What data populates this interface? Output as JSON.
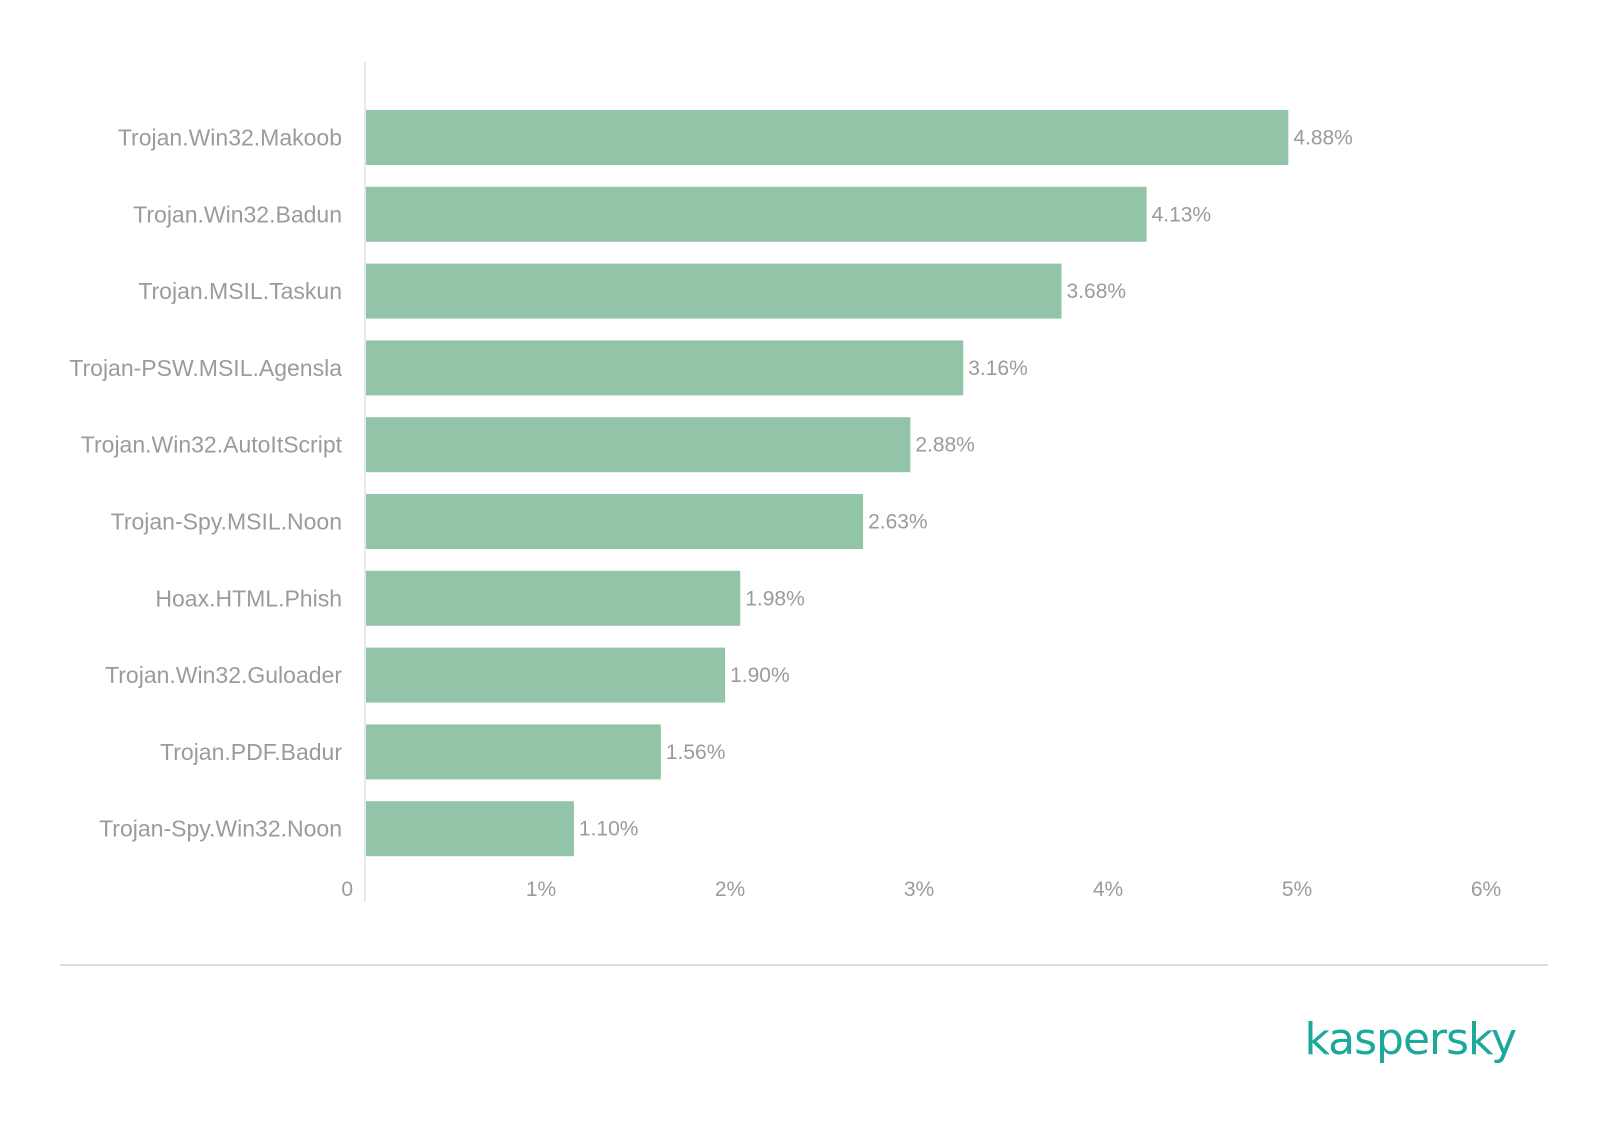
{
  "chart_data": {
    "type": "bar",
    "orientation": "horizontal",
    "categories": [
      "Trojan.Win32.Makoob",
      "Trojan.Win32.Badun",
      "Trojan.MSIL.Taskun",
      "Trojan-PSW.MSIL.Agensla",
      "Trojan.Win32.AutoItScript",
      "Trojan-Spy.MSIL.Noon",
      "Hoax.HTML.Phish",
      "Trojan.Win32.Guloader",
      "Trojan.PDF.Badur",
      "Trojan-Spy.Win32.Noon"
    ],
    "values": [
      4.88,
      4.13,
      3.68,
      3.16,
      2.88,
      2.63,
      1.98,
      1.9,
      1.56,
      1.1
    ],
    "value_labels": [
      "4.88%",
      "4.13%",
      "3.68%",
      "3.16%",
      "2.88%",
      "2.63%",
      "1.98%",
      "1.90%",
      "1.56%",
      "1.10%"
    ],
    "xlim": [
      0,
      6
    ],
    "x_ticks": [
      0,
      1,
      2,
      3,
      4,
      5,
      6
    ],
    "x_tick_labels": [
      "0",
      "1%",
      "2%",
      "3%",
      "4%",
      "5%",
      "6%"
    ],
    "grid": false,
    "bar_color": "#92c4a7"
  },
  "branding": {
    "logo_text": "kaspersky",
    "logo_color": "#1aa99b"
  }
}
